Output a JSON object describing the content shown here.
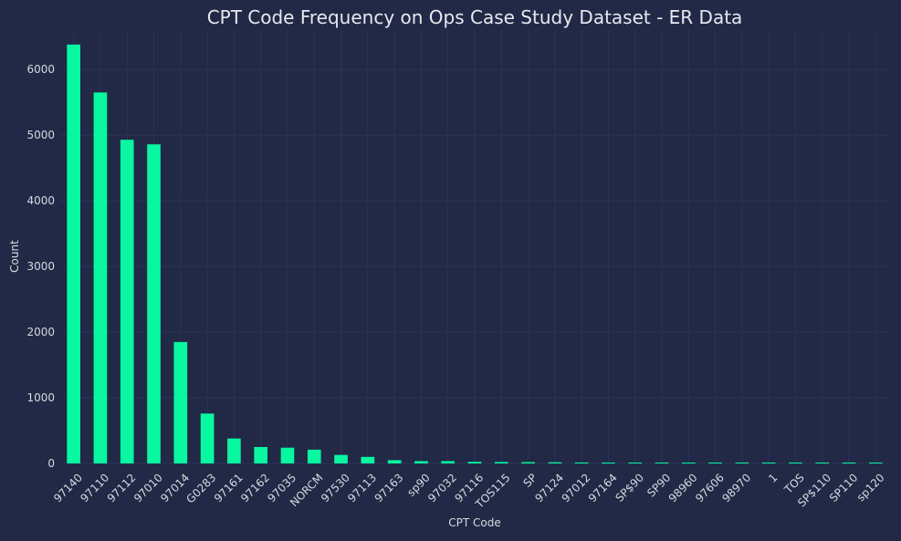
{
  "theme": {
    "background": "#212946",
    "grid": "#2A3459",
    "bar": "#08F7A0",
    "text": "#E8E8F0",
    "axis_text": "#D6D9E0"
  },
  "chart_data": {
    "type": "bar",
    "title": "CPT Code Frequency on Ops Case Study Dataset - ER Data",
    "xlabel": "CPT Code",
    "ylabel": "Count",
    "ylim": [
      0,
      6600
    ],
    "yticks": [
      0,
      1000,
      2000,
      3000,
      4000,
      5000,
      6000
    ],
    "grid": true,
    "categories": [
      "97140",
      "97110",
      "97112",
      "97010",
      "97014",
      "G0283",
      "97161",
      "97162",
      "97035",
      "NORCM",
      "97530",
      "97113",
      "97163",
      "sp90",
      "97032",
      "97116",
      "TOS115",
      "SP",
      "97124",
      "97012",
      "97164",
      "SP$90",
      "SP90",
      "98960",
      "97606",
      "98970",
      "1",
      "TOS",
      "SP$110",
      "SP110",
      "sp120"
    ],
    "values": [
      6380,
      5650,
      4930,
      4860,
      1850,
      760,
      380,
      250,
      240,
      210,
      130,
      100,
      50,
      35,
      35,
      25,
      22,
      20,
      18,
      15,
      10,
      8,
      7,
      6,
      5,
      5,
      4,
      4,
      3,
      3,
      2
    ]
  }
}
